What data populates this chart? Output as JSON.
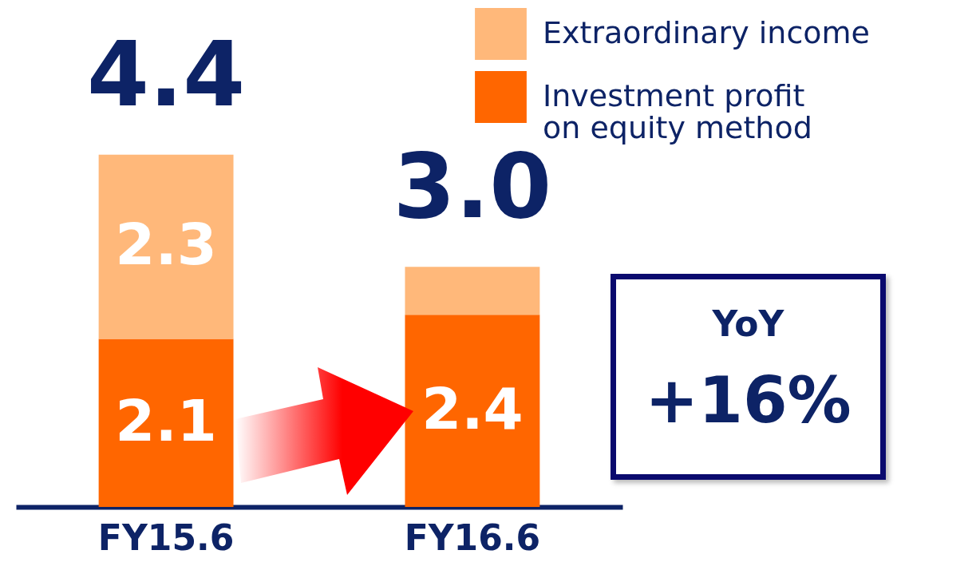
{
  "chart_data": {
    "type": "bar",
    "stacked": true,
    "categories": [
      "FY15.6",
      "FY16.6"
    ],
    "series": [
      {
        "name": "Investment profit on equity method",
        "color": "#ff6600",
        "values": [
          2.1,
          2.4
        ],
        "value_labels": [
          "2.1",
          "2.4"
        ]
      },
      {
        "name": "Extraordinary income",
        "color": "#ffb87a",
        "values": [
          2.3,
          0.6
        ],
        "value_labels": [
          "2.3",
          null
        ]
      }
    ],
    "totals": [
      "4.4",
      "3.0"
    ],
    "legend": "top right",
    "grid": false,
    "annotations": [
      "YoY",
      "+16%"
    ]
  }
}
